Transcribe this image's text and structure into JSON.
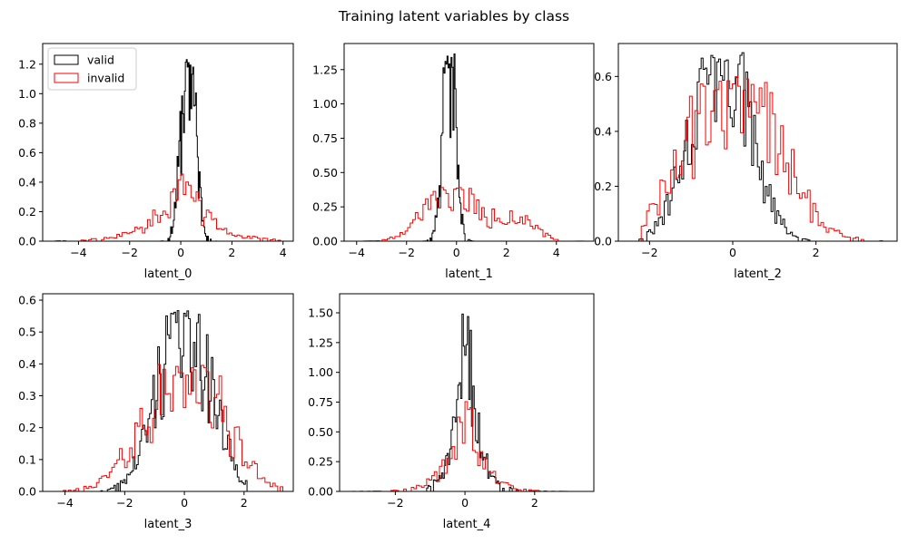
{
  "title": "Training latent variables by class",
  "colors": {
    "valid": "#000000",
    "invalid": "#ff0000"
  },
  "legend": {
    "position": "top-left",
    "entries": [
      {
        "label": "valid",
        "color": "#000000"
      },
      {
        "label": "invalid",
        "color": "#ff0000"
      }
    ]
  },
  "chart_data": [
    {
      "type": "step-histogram",
      "name": "latent_0",
      "xlabel": "latent_0",
      "ylabel": "",
      "xlim": [
        -5.4,
        4.4
      ],
      "ylim": [
        0,
        1.34
      ],
      "xticks": [
        -4,
        -2,
        0,
        2,
        4
      ],
      "yticks": [
        0.0,
        0.2,
        0.4,
        0.6,
        0.8,
        1.0,
        1.2
      ],
      "series": [
        {
          "name": "valid",
          "color": "#000000",
          "peak_x": 0.3,
          "peak_y": 1.28,
          "spread": 0.28,
          "x_range": [
            -1.8,
            1.8
          ],
          "bins": 100,
          "profile": "gauss",
          "seed": 11
        },
        {
          "name": "invalid",
          "color": "#ff0000",
          "peak_x": 0.0,
          "peak_y": 0.46,
          "spread": 0.95,
          "x_range": [
            -5.1,
            3.9
          ],
          "bins": 90,
          "profile": "laplace",
          "seed": 12
        }
      ]
    },
    {
      "type": "step-histogram",
      "name": "latent_1",
      "xlabel": "latent_1",
      "ylabel": "",
      "xlim": [
        -4.5,
        5.5
      ],
      "ylim": [
        0,
        1.44
      ],
      "xticks": [
        -4,
        -2,
        0,
        2,
        4
      ],
      "yticks": [
        0.0,
        0.25,
        0.5,
        0.75,
        1.0,
        1.25
      ],
      "series": [
        {
          "name": "valid",
          "color": "#000000",
          "peak_x": -0.3,
          "peak_y": 1.38,
          "spread": 0.26,
          "x_range": [
            -1.5,
            2.5
          ],
          "bins": 100,
          "profile": "gauss",
          "seed": 21
        },
        {
          "name": "invalid",
          "color": "#ff0000",
          "peak_x": -0.2,
          "peak_y": 0.4,
          "spread": 1.0,
          "x_range": [
            -4.0,
            5.2
          ],
          "bins": 90,
          "profile": "bimodal",
          "seed": 22
        }
      ]
    },
    {
      "type": "step-histogram",
      "name": "latent_2",
      "xlabel": "latent_2",
      "ylabel": "",
      "xlim": [
        -2.75,
        3.95
      ],
      "ylim": [
        0,
        0.72
      ],
      "xticks": [
        -2,
        0,
        2
      ],
      "yticks": [
        0.0,
        0.2,
        0.4,
        0.6
      ],
      "series": [
        {
          "name": "valid",
          "color": "#000000",
          "peak_x": -0.3,
          "peak_y": 0.69,
          "spread": 0.68,
          "x_range": [
            -2.3,
            1.9
          ],
          "bins": 90,
          "profile": "gauss",
          "seed": 31
        },
        {
          "name": "invalid",
          "color": "#ff0000",
          "peak_x": 0.0,
          "peak_y": 0.6,
          "spread": 1.05,
          "x_range": [
            -2.2,
            3.6
          ],
          "bins": 90,
          "profile": "gauss",
          "seed": 32
        }
      ]
    },
    {
      "type": "step-histogram",
      "name": "latent_3",
      "xlabel": "latent_3",
      "ylabel": "",
      "xlim": [
        -4.75,
        3.65
      ],
      "ylim": [
        0,
        0.62
      ],
      "xticks": [
        -4,
        -2,
        0,
        2
      ],
      "yticks": [
        0.0,
        0.1,
        0.2,
        0.3,
        0.4,
        0.5,
        0.6
      ],
      "series": [
        {
          "name": "valid",
          "color": "#000000",
          "peak_x": 0.0,
          "peak_y": 0.58,
          "spread": 0.85,
          "x_range": [
            -2.8,
            2.1
          ],
          "bins": 90,
          "profile": "gauss",
          "seed": 41
        },
        {
          "name": "invalid",
          "color": "#ff0000",
          "peak_x": 0.0,
          "peak_y": 0.4,
          "spread": 1.25,
          "x_range": [
            -4.4,
            3.3
          ],
          "bins": 90,
          "profile": "gauss",
          "seed": 42
        }
      ]
    },
    {
      "type": "step-histogram",
      "name": "latent_4",
      "xlabel": "latent_4",
      "ylabel": "",
      "xlim": [
        -3.6,
        3.7
      ],
      "ylim": [
        0,
        1.66
      ],
      "xticks": [
        -2,
        0,
        2
      ],
      "yticks": [
        0.0,
        0.25,
        0.5,
        0.75,
        1.0,
        1.25,
        1.5
      ],
      "series": [
        {
          "name": "valid",
          "color": "#000000",
          "peak_x": 0.05,
          "peak_y": 1.58,
          "spread": 0.3,
          "x_range": [
            -1.1,
            2.8
          ],
          "bins": 100,
          "profile": "laplace",
          "seed": 51
        },
        {
          "name": "invalid",
          "color": "#ff0000",
          "peak_x": 0.0,
          "peak_y": 0.78,
          "spread": 0.45,
          "x_range": [
            -3.3,
            3.3
          ],
          "bins": 90,
          "profile": "laplace",
          "seed": 52
        }
      ]
    }
  ]
}
